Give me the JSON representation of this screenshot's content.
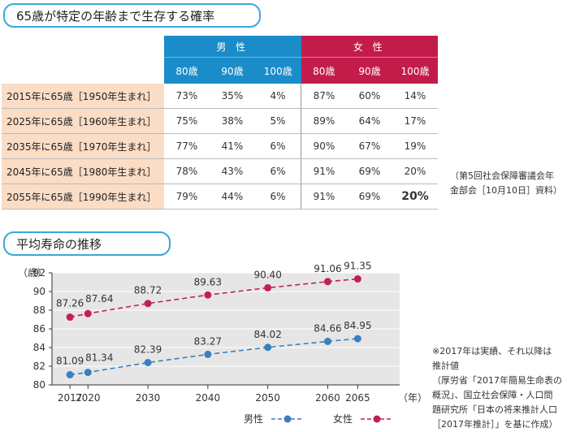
{
  "table_section": {
    "title": "65歳が特定の年齢まで生存する確率",
    "groups": [
      "男 性",
      "女 性"
    ],
    "ages": [
      "80歳",
      "90歳",
      "100歳",
      "80歳",
      "90歳",
      "100歳"
    ],
    "rows": [
      {
        "label": "2015年に65歳［1950年生まれ］",
        "values": [
          "73%",
          "35%",
          "4%",
          "87%",
          "60%",
          "14%"
        ]
      },
      {
        "label": "2025年に65歳［1960年生まれ］",
        "values": [
          "75%",
          "38%",
          "5%",
          "89%",
          "64%",
          "17%"
        ]
      },
      {
        "label": "2035年に65歳［1970年生まれ］",
        "values": [
          "77%",
          "41%",
          "6%",
          "90%",
          "67%",
          "19%"
        ]
      },
      {
        "label": "2045年に65歳［1980年生まれ］",
        "values": [
          "78%",
          "43%",
          "6%",
          "91%",
          "69%",
          "20%"
        ]
      },
      {
        "label": "2055年に65歳［1990年生まれ］",
        "values": [
          "79%",
          "44%",
          "6%",
          "91%",
          "69%",
          "20%"
        ]
      }
    ],
    "source_line1": "（第5回社会保障審議会年",
    "source_line2": "金部会［10月10日］資料）"
  },
  "chart_section": {
    "title": "平均寿命の推移",
    "note_lines": [
      "※2017年は実績、それ以降は",
      "推計値",
      "（厚労省「2017年簡易生命表の",
      "概況」、国立社会保障・人口問",
      "題研究所「日本の将来推計人口",
      "［2017年推計］」を基に作成）"
    ]
  },
  "chart_data": {
    "type": "line",
    "x": [
      2017,
      2020,
      2030,
      2040,
      2050,
      2060,
      2065
    ],
    "x_tick_labels": [
      "2017",
      "2020",
      "2030",
      "2040",
      "2050",
      "2060",
      "2065"
    ],
    "series": [
      {
        "name": "男性",
        "values": [
          81.09,
          81.34,
          82.39,
          83.27,
          84.02,
          84.66,
          84.95
        ],
        "labels": [
          "81.09",
          "81.34",
          "82.39",
          "83.27",
          "84.02",
          "84.66",
          "84.95"
        ],
        "color": "#3a7fc1"
      },
      {
        "name": "女性",
        "values": [
          87.26,
          87.64,
          88.72,
          89.63,
          90.4,
          91.06,
          91.35
        ],
        "labels": [
          "87.26",
          "87.64",
          "88.72",
          "89.63",
          "90.40",
          "91.06",
          "91.35"
        ],
        "color": "#c0214f"
      }
    ],
    "ylabel": "（歳）",
    "xlabel": "（年）",
    "ylim": [
      80,
      92
    ],
    "y_ticks": [
      "80",
      "82",
      "84",
      "86",
      "88",
      "90",
      "92"
    ],
    "grid": true,
    "legend": "bottom-right"
  }
}
